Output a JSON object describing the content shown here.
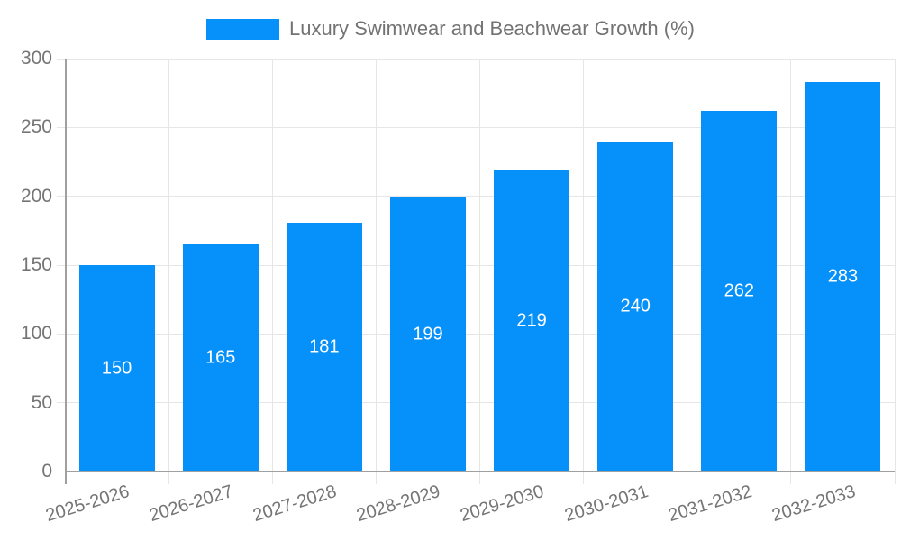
{
  "chart_data": {
    "type": "bar",
    "title": "Luxury Swimwear and Beachwear Growth (%)",
    "categories": [
      "2025-2026",
      "2026-2027",
      "2027-2028",
      "2028-2029",
      "2029-2030",
      "2030-2031",
      "2031-2032",
      "2032-2033"
    ],
    "values": [
      150,
      165,
      181,
      199,
      219,
      240,
      262,
      283
    ],
    "xlabel": "",
    "ylabel": "",
    "ylim": [
      0,
      300
    ],
    "yticks": [
      0,
      50,
      100,
      150,
      200,
      250,
      300
    ],
    "grid": true,
    "legend_position": "top-center",
    "value_labels": "inside-center",
    "colors": {
      "bar": "#0690fa",
      "value_label": "#ffffff",
      "axis": "#a0a0a0",
      "grid": "#e6e6e6",
      "tick_label": "#757575",
      "title": "#737373",
      "background": "#ffffff"
    }
  }
}
